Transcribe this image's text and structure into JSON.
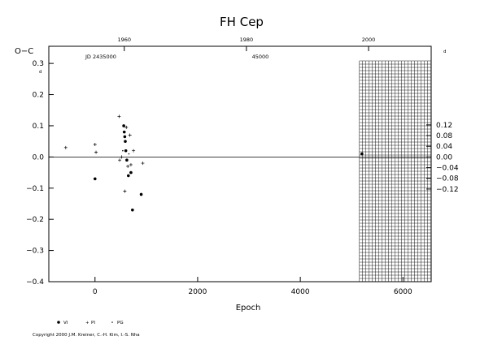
{
  "chart_data": {
    "type": "scatter",
    "title": "FH Cep",
    "xlabel": "Epoch",
    "ylabel": "O−C",
    "right_unit": "d",
    "left_unit": "d",
    "xlim": [
      -900,
      6550
    ],
    "ylim": [
      -0.4,
      0.355
    ],
    "x_ticks": [
      0,
      2000,
      4000,
      6000
    ],
    "x_tick_labels": [
      "0",
      "2000",
      "4000",
      "6000"
    ],
    "y_ticks": [
      -0.4,
      -0.3,
      -0.2,
      -0.1,
      0.0,
      0.1,
      0.2,
      0.3
    ],
    "y_tick_labels": [
      "−0.4",
      "−0.3",
      "−0.2",
      "−0.1",
      "0.0",
      "0.1",
      "0.2",
      "0.3"
    ],
    "right_ticks": [
      -0.12,
      -0.08,
      -0.04,
      0.0,
      0.04,
      0.08,
      0.12
    ],
    "right_tick_labels": [
      "−0.12",
      "−0.08",
      "−0.04",
      "0.00",
      "0.04",
      "0.08",
      "0.12"
    ],
    "top_axis": {
      "year_ticks": [
        1960,
        1980,
        2000
      ],
      "year_tick_labels": [
        "1960",
        "1980",
        "2000"
      ],
      "year_epochs": [
        570,
        2950,
        5330
      ],
      "jd_label": "JD 2435000",
      "jd_tick_label": "45000",
      "jd_tick_epoch": 3220
    },
    "hatched_region": {
      "x_from": 5150,
      "x_to": 6550
    },
    "zero_line": true,
    "grid": false,
    "series": [
      {
        "name": "vi",
        "marker": "dot",
        "points": [
          [
            0,
            -0.07
          ],
          [
            560,
            0.1
          ],
          [
            570,
            0.08
          ],
          [
            580,
            0.065
          ],
          [
            590,
            0.05
          ],
          [
            600,
            0.02
          ],
          [
            620,
            -0.01
          ],
          [
            650,
            -0.06
          ],
          [
            700,
            -0.05
          ],
          [
            730,
            -0.17
          ],
          [
            900,
            -0.12
          ],
          [
            5200,
            0.01
          ]
        ]
      },
      {
        "name": "pi",
        "marker": "plus",
        "points": [
          [
            -570,
            0.03
          ],
          [
            0,
            0.04
          ],
          [
            20,
            0.015
          ],
          [
            470,
            0.13
          ],
          [
            480,
            -0.01
          ],
          [
            520,
            0.0
          ],
          [
            580,
            -0.11
          ],
          [
            610,
            0.095
          ],
          [
            640,
            -0.03
          ],
          [
            680,
            0.07
          ],
          [
            700,
            -0.025
          ],
          [
            750,
            0.02
          ],
          [
            930,
            -0.02
          ]
        ]
      },
      {
        "name": "pg",
        "marker": "small",
        "points": [
          [
            540,
            0.02
          ],
          [
            660,
            0.01
          ]
        ]
      }
    ],
    "legend": [
      "VI",
      "PI",
      "PG"
    ],
    "legend_placement": "bottom-left"
  },
  "copyright": "Copyright 2000 J.M. Kreiner, C.-H. Kim, I.-S. Nha"
}
